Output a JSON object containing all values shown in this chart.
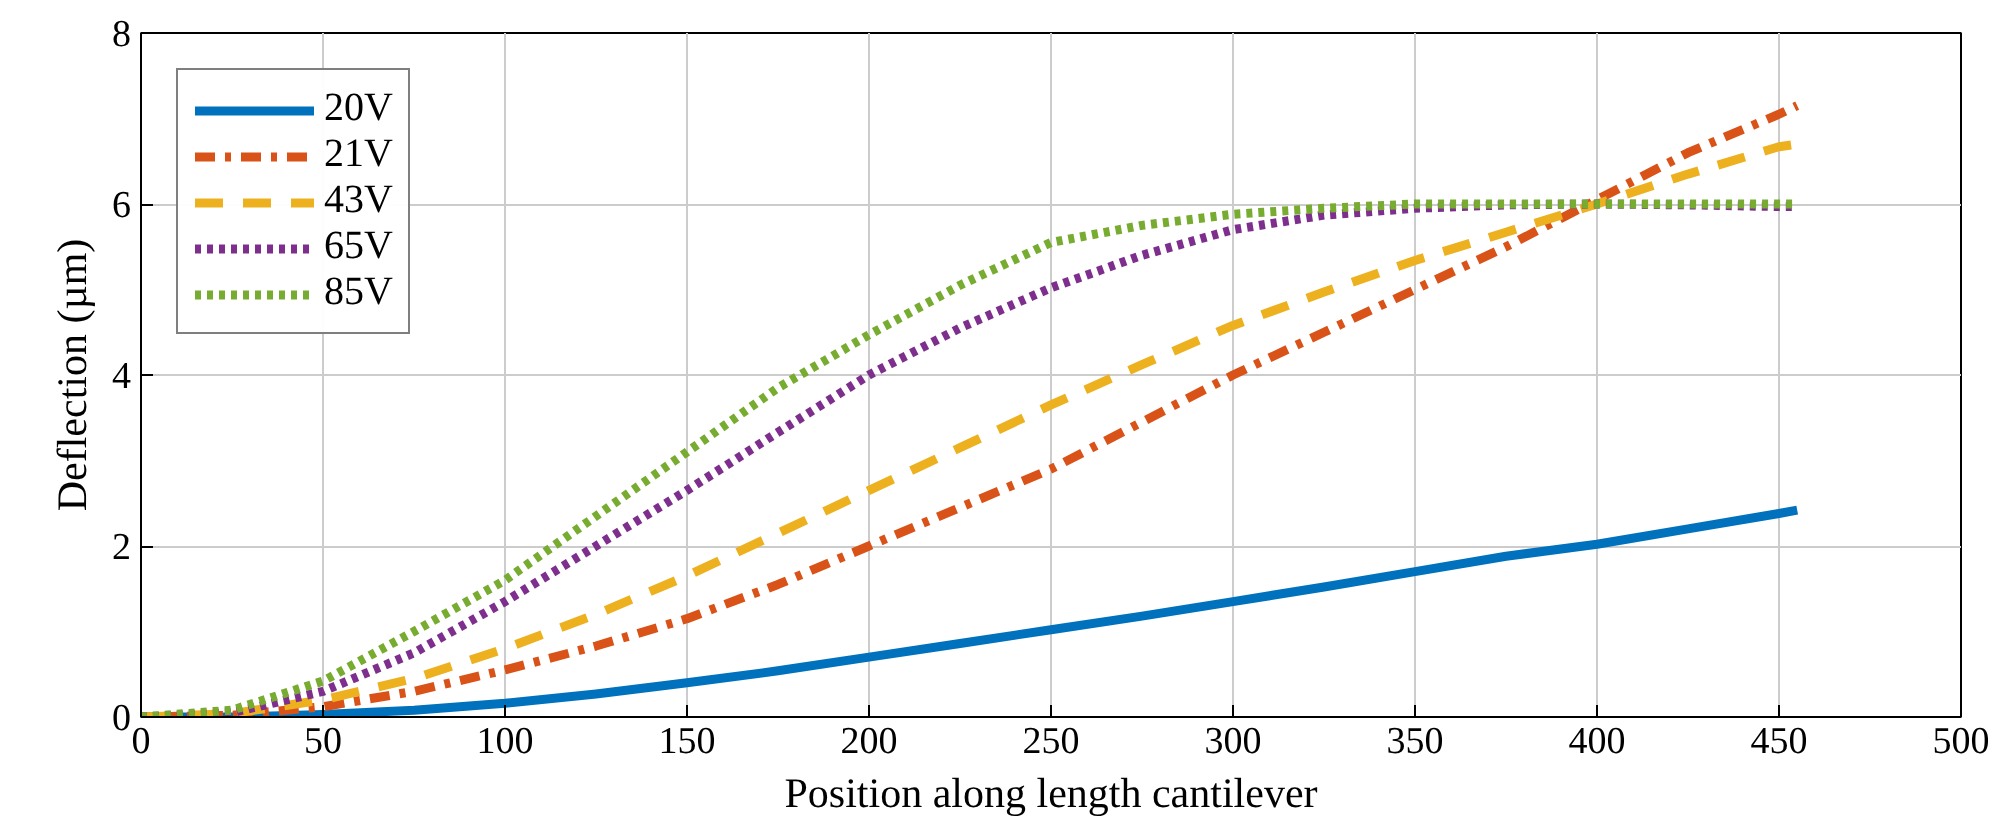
{
  "chart_data": {
    "type": "line",
    "xlabel": "Position along length cantilever",
    "ylabel": "Deflection (µm)",
    "x": [
      0,
      25,
      50,
      75,
      100,
      125,
      150,
      175,
      200,
      225,
      250,
      275,
      300,
      325,
      350,
      375,
      400,
      425,
      450,
      455
    ],
    "xlim": [
      0,
      500
    ],
    "xticks": [
      0,
      50,
      100,
      150,
      200,
      250,
      300,
      350,
      400,
      450,
      500
    ],
    "ylim": [
      0,
      8
    ],
    "yticks": [
      0,
      2,
      4,
      6,
      8
    ],
    "grid": true,
    "legend": "top left",
    "marker": "none",
    "series": [
      {
        "name": "20V",
        "color": "#0072bd",
        "line_style": "solid",
        "values": [
          0,
          0,
          0.03,
          0.08,
          0.16,
          0.27,
          0.4,
          0.54,
          0.7,
          0.86,
          1.02,
          1.18,
          1.35,
          1.52,
          1.7,
          1.88,
          2.02,
          2.2,
          2.38,
          2.42
        ]
      },
      {
        "name": "21V",
        "color": "#d95319",
        "line_style": "dashdot",
        "values": [
          0,
          0.02,
          0.12,
          0.3,
          0.55,
          0.83,
          1.15,
          1.55,
          2.0,
          2.45,
          2.9,
          3.45,
          4.0,
          4.5,
          5.0,
          5.5,
          6.05,
          6.6,
          7.05,
          7.15
        ]
      },
      {
        "name": "43V",
        "color": "#edb120",
        "line_style": "dashed",
        "values": [
          0,
          0.04,
          0.2,
          0.45,
          0.8,
          1.2,
          1.65,
          2.15,
          2.65,
          3.15,
          3.65,
          4.12,
          4.58,
          4.97,
          5.34,
          5.67,
          6.0,
          6.35,
          6.67,
          6.7
        ]
      },
      {
        "name": "65V",
        "color": "#7e2f8e",
        "line_style": "dotted",
        "values": [
          0,
          0.05,
          0.3,
          0.75,
          1.35,
          2.0,
          2.65,
          3.33,
          4.0,
          4.55,
          5.02,
          5.4,
          5.7,
          5.87,
          5.95,
          5.99,
          6.0,
          5.99,
          5.97,
          5.97
        ]
      },
      {
        "name": "85V",
        "color": "#77ac30",
        "line_style": "dotted",
        "values": [
          0,
          0.08,
          0.42,
          1.0,
          1.6,
          2.35,
          3.1,
          3.85,
          4.47,
          5.05,
          5.55,
          5.75,
          5.88,
          5.95,
          6.0,
          6.0,
          6.0,
          6.0,
          6.0,
          6.0
        ]
      }
    ]
  }
}
